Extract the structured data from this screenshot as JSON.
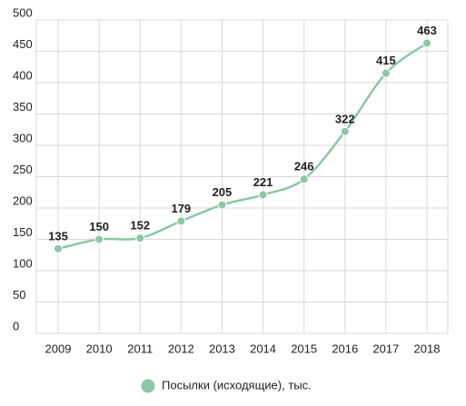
{
  "chart_data": {
    "type": "line",
    "categories": [
      "2009",
      "2010",
      "2011",
      "2012",
      "2013",
      "2014",
      "2015",
      "2016",
      "2017",
      "2018"
    ],
    "series": [
      {
        "name": "Посылки (исходящие), тыс.",
        "color": "#8cc7a6",
        "values": [
          135,
          150,
          152,
          179,
          205,
          221,
          246,
          322,
          415,
          463
        ]
      }
    ],
    "ylim": [
      0,
      500
    ],
    "yticks": [
      0,
      50,
      100,
      150,
      200,
      250,
      300,
      350,
      400,
      450,
      500
    ],
    "grid": true,
    "smooth": true,
    "legend": "bottom"
  }
}
